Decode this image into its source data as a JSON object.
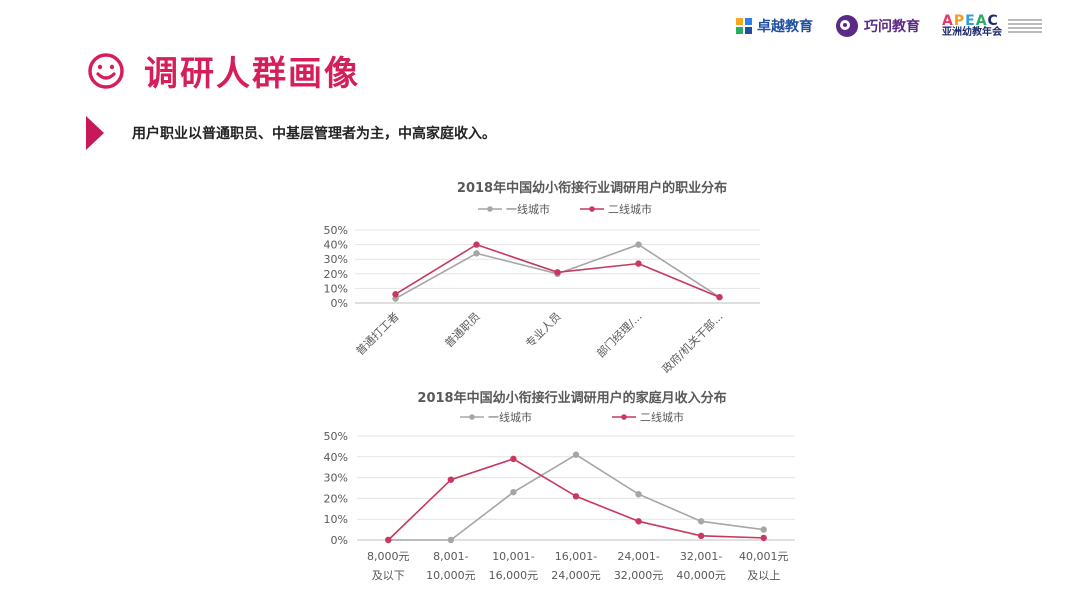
{
  "logos": {
    "zhuoyue": "卓越教育",
    "qiaowen": "巧问教育",
    "apeac": "APEAC",
    "apeac_cn": "亚洲幼教年会"
  },
  "header": {
    "title": "调研人群画像",
    "summary": "用户职业以普通职员、中基层管理者为主，中高家庭收入。"
  },
  "colors": {
    "accent": "#d61e59",
    "series1": "#a6a6a6",
    "series2": "#c8385f"
  },
  "chart_data": [
    {
      "type": "line",
      "title": "2018年中国幼小衔接行业调研用户的职业分布",
      "categories": [
        "普通打工者",
        "普通职员",
        "专业人员",
        "部门经理/...",
        "政府/机关干部..."
      ],
      "series": [
        {
          "name": "一线城市",
          "values": [
            3,
            34,
            20,
            40,
            4
          ]
        },
        {
          "name": "二线城市",
          "values": [
            6,
            40,
            21,
            27,
            4
          ]
        }
      ],
      "yticks": [
        "0%",
        "10%",
        "20%",
        "30%",
        "40%",
        "50%"
      ],
      "ylim": [
        0,
        50
      ],
      "grid": true,
      "legend": "top"
    },
    {
      "type": "line",
      "title": "2018年中国幼小衔接行业调研用户的家庭月收入分布",
      "categories": [
        [
          "8,000元",
          "及以下"
        ],
        [
          "8,001-",
          "10,000元"
        ],
        [
          "10,001-",
          "16,000元"
        ],
        [
          "16,001-",
          "24,000元"
        ],
        [
          "24,001-",
          "32,000元"
        ],
        [
          "32,001-",
          "40,000元"
        ],
        [
          "40,001元",
          "及以上"
        ]
      ],
      "series": [
        {
          "name": "一线城市",
          "values": [
            0,
            0,
            23,
            41,
            22,
            9,
            5
          ]
        },
        {
          "name": "二线城市",
          "values": [
            0,
            29,
            39,
            21,
            9,
            2,
            1
          ]
        }
      ],
      "yticks": [
        "0%",
        "10%",
        "20%",
        "30%",
        "40%",
        "50%"
      ],
      "ylim": [
        0,
        50
      ],
      "grid": true,
      "legend": "top"
    }
  ]
}
